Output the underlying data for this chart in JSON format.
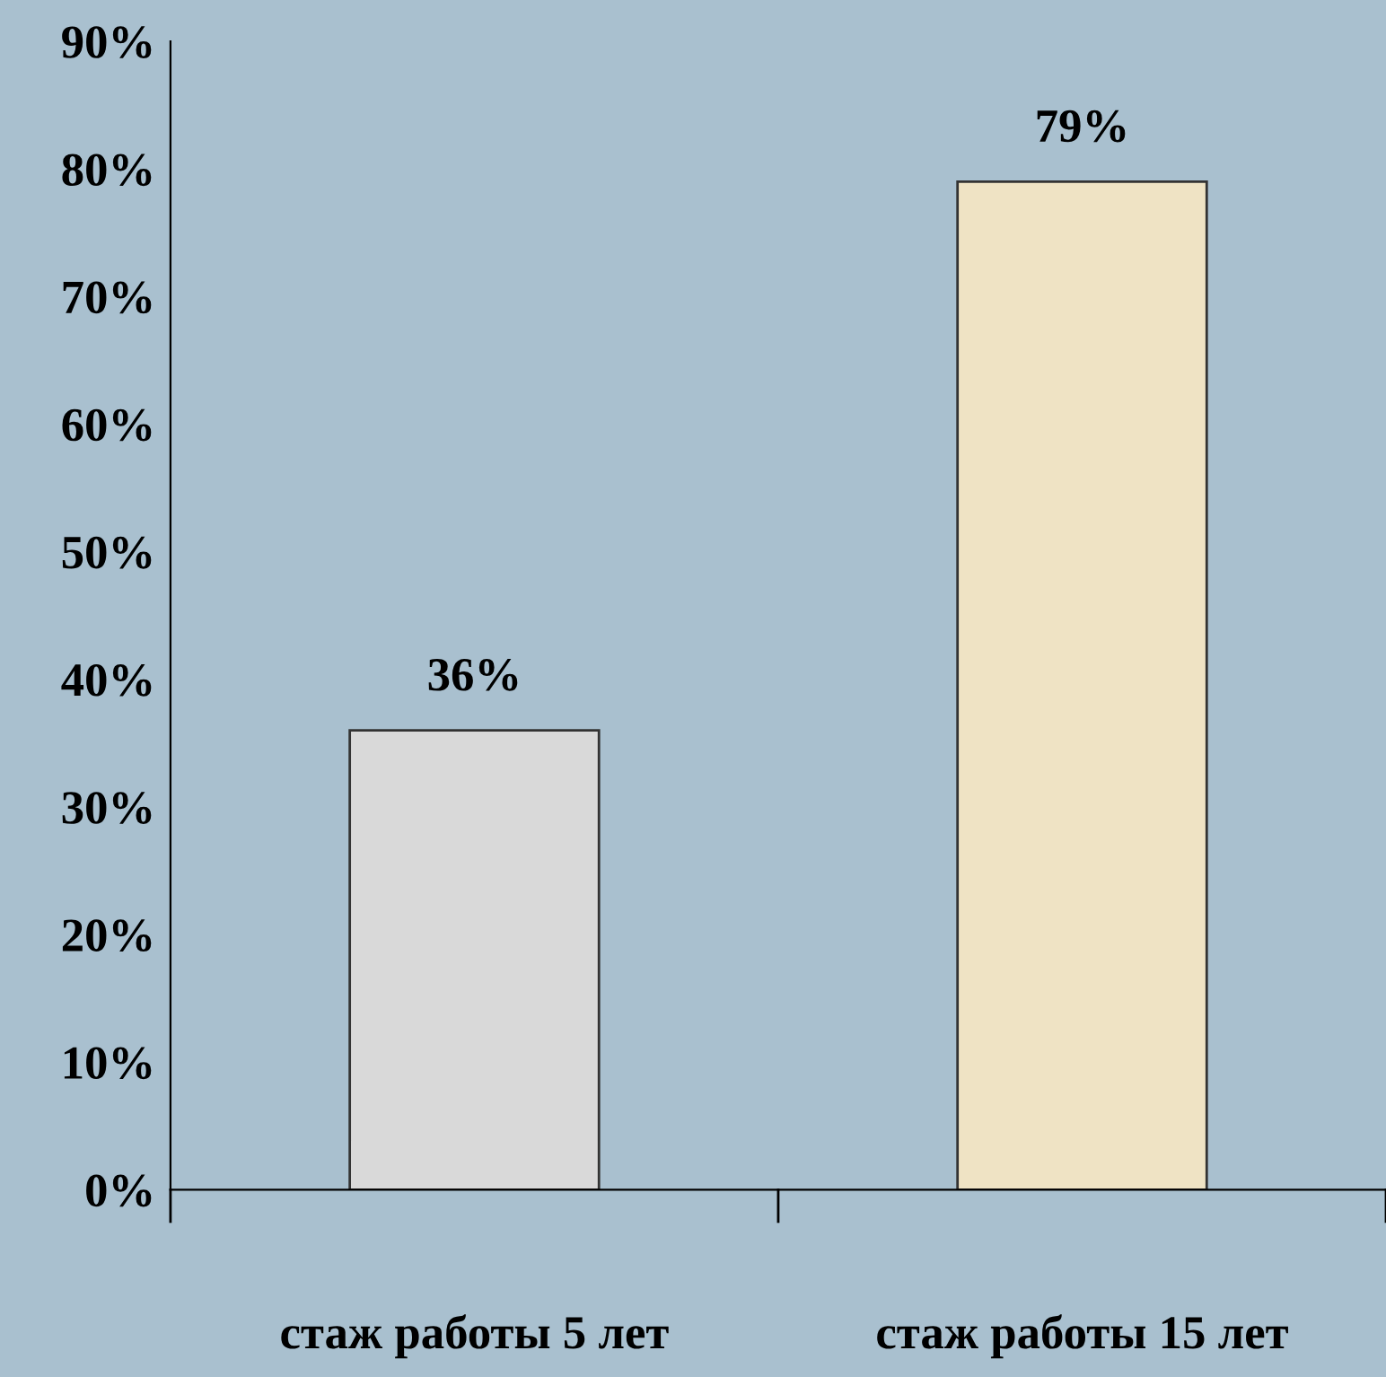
{
  "chart_data": {
    "type": "bar",
    "categories": [
      "стаж работы 5 лет",
      "стаж работы 15 лет"
    ],
    "values": [
      36,
      79
    ],
    "colors": [
      "#d9d9d9",
      "#efe3c4"
    ],
    "value_labels": [
      "36%",
      "79%"
    ],
    "ylim": [
      0,
      90
    ],
    "yticks": [
      {
        "value": 0,
        "label": "0%"
      },
      {
        "value": 10,
        "label": "10%"
      },
      {
        "value": 20,
        "label": "20%"
      },
      {
        "value": 30,
        "label": "30%"
      },
      {
        "value": 40,
        "label": "40%"
      },
      {
        "value": 50,
        "label": "50%"
      },
      {
        "value": 60,
        "label": "60%"
      },
      {
        "value": 70,
        "label": "70%"
      },
      {
        "value": 80,
        "label": "80%"
      },
      {
        "value": 90,
        "label": "90%"
      }
    ],
    "grid": false,
    "legend": false
  }
}
